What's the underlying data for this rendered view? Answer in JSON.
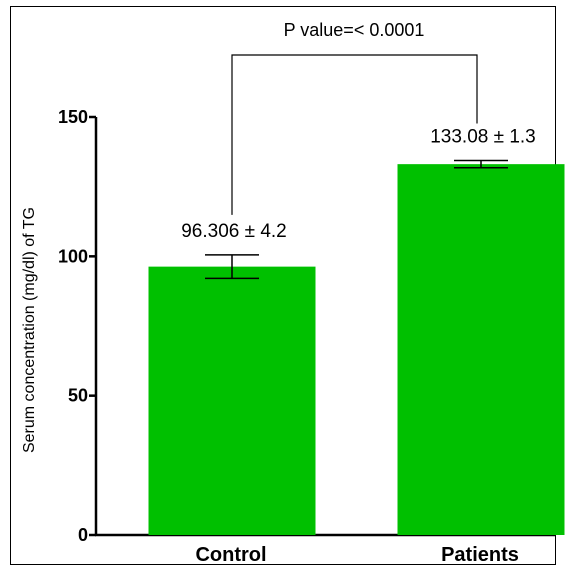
{
  "chart_data": {
    "type": "bar",
    "categories": [
      "Control",
      "Patients"
    ],
    "values": [
      96.306,
      133.08
    ],
    "errors": [
      4.2,
      1.3
    ],
    "data_labels": [
      "96.306 ± 4.2",
      "133.08 ± 1.3"
    ],
    "ylabel": "Serum concentration (mg/dl) of TG",
    "xlabel": "",
    "ylim": [
      0,
      150
    ],
    "yticks": [
      0,
      50,
      100,
      150
    ],
    "ytick_labels": [
      "0",
      "50",
      "100",
      "150"
    ],
    "annotation": "P value=< 0.0001",
    "bar_color": "#00c000",
    "grid": false
  }
}
